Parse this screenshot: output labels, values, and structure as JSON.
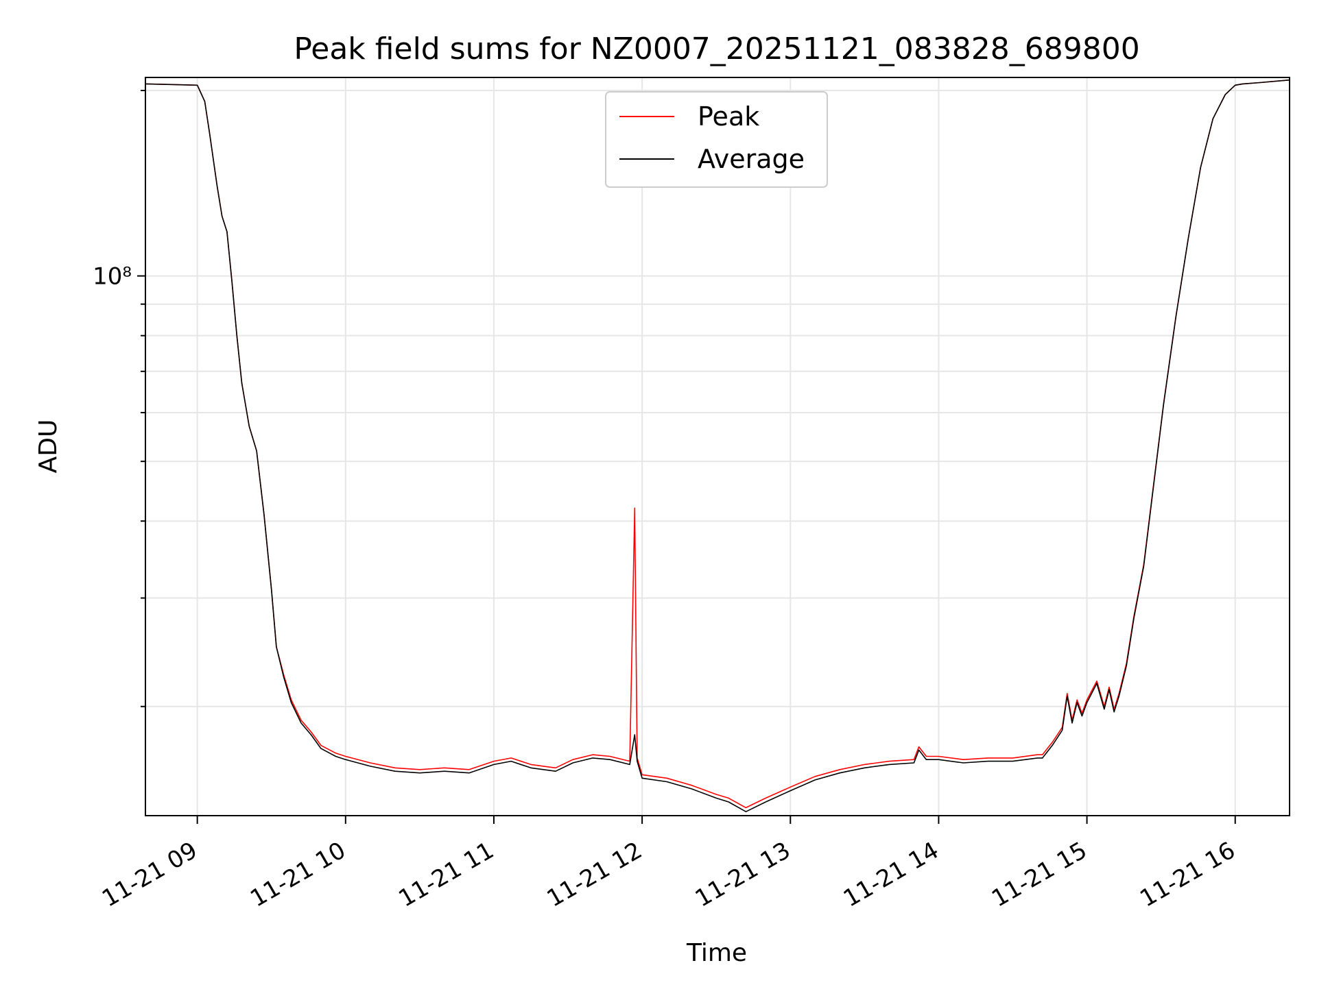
{
  "chart_data": {
    "type": "line",
    "title": "Peak field sums for NZ0007_20251121_083828_689800",
    "xlabel": "Time",
    "ylabel": "ADU",
    "y_scale": "log",
    "ylim": [
      13300000,
      210000000
    ],
    "xlim": [
      "2025-11-21 08:39",
      "2025-11-21 16:22"
    ],
    "x_ticks": [
      {
        "label": "11-21 09",
        "value": "2025-11-21 09:00"
      },
      {
        "label": "11-21 10",
        "value": "2025-11-21 10:00"
      },
      {
        "label": "11-21 11",
        "value": "2025-11-21 11:00"
      },
      {
        "label": "11-21 12",
        "value": "2025-11-21 12:00"
      },
      {
        "label": "11-21 13",
        "value": "2025-11-21 13:00"
      },
      {
        "label": "11-21 14",
        "value": "2025-11-21 14:00"
      },
      {
        "label": "11-21 15",
        "value": "2025-11-21 15:00"
      },
      {
        "label": "11-21 16",
        "value": "2025-11-21 16:00"
      }
    ],
    "y_ticks": [
      {
        "label": "10⁸",
        "value": 100000000
      }
    ],
    "grid": true,
    "legend_position": "top-center",
    "x": [
      "2025-11-21 08:39",
      "2025-11-21 09:00",
      "2025-11-21 09:03",
      "2025-11-21 09:05",
      "2025-11-21 09:08",
      "2025-11-21 09:10",
      "2025-11-21 09:12",
      "2025-11-21 09:14",
      "2025-11-21 09:16",
      "2025-11-21 09:18",
      "2025-11-21 09:21",
      "2025-11-21 09:24",
      "2025-11-21 09:27",
      "2025-11-21 09:30",
      "2025-11-21 09:32",
      "2025-11-21 09:35",
      "2025-11-21 09:38",
      "2025-11-21 09:42",
      "2025-11-21 09:46",
      "2025-11-21 09:50",
      "2025-11-21 09:56",
      "2025-11-21 10:00",
      "2025-11-21 10:10",
      "2025-11-21 10:20",
      "2025-11-21 10:30",
      "2025-11-21 10:40",
      "2025-11-21 10:50",
      "2025-11-21 11:00",
      "2025-11-21 11:07",
      "2025-11-21 11:15",
      "2025-11-21 11:25",
      "2025-11-21 11:32",
      "2025-11-21 11:40",
      "2025-11-21 11:47",
      "2025-11-21 11:55",
      "2025-11-21 11:57",
      "2025-11-21 11:58",
      "2025-11-21 12:00",
      "2025-11-21 12:10",
      "2025-11-21 12:20",
      "2025-11-21 12:30",
      "2025-11-21 12:35",
      "2025-11-21 12:42",
      "2025-11-21 12:50",
      "2025-11-21 13:00",
      "2025-11-21 13:10",
      "2025-11-21 13:20",
      "2025-11-21 13:30",
      "2025-11-21 13:40",
      "2025-11-21 13:50",
      "2025-11-21 13:52",
      "2025-11-21 13:55",
      "2025-11-21 14:00",
      "2025-11-21 14:10",
      "2025-11-21 14:20",
      "2025-11-21 14:30",
      "2025-11-21 14:40",
      "2025-11-21 14:42",
      "2025-11-21 14:46",
      "2025-11-21 14:50",
      "2025-11-21 14:52",
      "2025-11-21 14:54",
      "2025-11-21 14:56",
      "2025-11-21 14:58",
      "2025-11-21 15:00",
      "2025-11-21 15:04",
      "2025-11-21 15:07",
      "2025-11-21 15:09",
      "2025-11-21 15:11",
      "2025-11-21 15:13",
      "2025-11-21 15:16",
      "2025-11-21 15:19",
      "2025-11-21 15:23",
      "2025-11-21 15:27",
      "2025-11-21 15:31",
      "2025-11-21 15:36",
      "2025-11-21 15:41",
      "2025-11-21 15:46",
      "2025-11-21 15:51",
      "2025-11-21 15:56",
      "2025-11-21 16:00",
      "2025-11-21 16:03",
      "2025-11-21 16:10",
      "2025-11-21 16:22"
    ],
    "series": [
      {
        "name": "Peak",
        "color": "#ff0000",
        "values": [
          205000000,
          204000000,
          192000000,
          170000000,
          140000000,
          125000000,
          118000000,
          98000000,
          80000000,
          67000000,
          57000000,
          52000000,
          41000000,
          31000000,
          25000000,
          22500000,
          20500000,
          19000000,
          18200000,
          17300000,
          16800000,
          16600000,
          16200000,
          15900000,
          15800000,
          15900000,
          15800000,
          16300000,
          16500000,
          16100000,
          15900000,
          16400000,
          16700000,
          16600000,
          16300000,
          42000000,
          16500000,
          15500000,
          15300000,
          14900000,
          14400000,
          14200000,
          13700000,
          14200000,
          14800000,
          15400000,
          15800000,
          16100000,
          16300000,
          16400000,
          17200000,
          16600000,
          16600000,
          16400000,
          16500000,
          16500000,
          16700000,
          16700000,
          17500000,
          18500000,
          21000000,
          19000000,
          20500000,
          19500000,
          20500000,
          22000000,
          20000000,
          21500000,
          19800000,
          21000000,
          23500000,
          28000000,
          34000000,
          46000000,
          62000000,
          86000000,
          115000000,
          150000000,
          180000000,
          197000000,
          204000000,
          205000000,
          206000000,
          208000000
        ]
      },
      {
        "name": "Average",
        "color": "#000000",
        "values": [
          205000000,
          204000000,
          192000000,
          170000000,
          140000000,
          125000000,
          118000000,
          98000000,
          80000000,
          67000000,
          57000000,
          52000000,
          41000000,
          31000000,
          25000000,
          22300000,
          20300000,
          18800000,
          18000000,
          17100000,
          16600000,
          16400000,
          16000000,
          15700000,
          15600000,
          15700000,
          15600000,
          16100000,
          16300000,
          15900000,
          15700000,
          16200000,
          16500000,
          16400000,
          16100000,
          18000000,
          16300000,
          15300000,
          15100000,
          14700000,
          14200000,
          14000000,
          13500000,
          14000000,
          14600000,
          15200000,
          15600000,
          15900000,
          16100000,
          16200000,
          17000000,
          16400000,
          16400000,
          16200000,
          16300000,
          16300000,
          16500000,
          16500000,
          17300000,
          18300000,
          20800000,
          18800000,
          20300000,
          19300000,
          20300000,
          21800000,
          19800000,
          21300000,
          19600000,
          20800000,
          23300000,
          27800000,
          33800000,
          45800000,
          61800000,
          85800000,
          115000000,
          150000000,
          180000000,
          197000000,
          204000000,
          205000000,
          206000000,
          208000000
        ]
      }
    ]
  }
}
